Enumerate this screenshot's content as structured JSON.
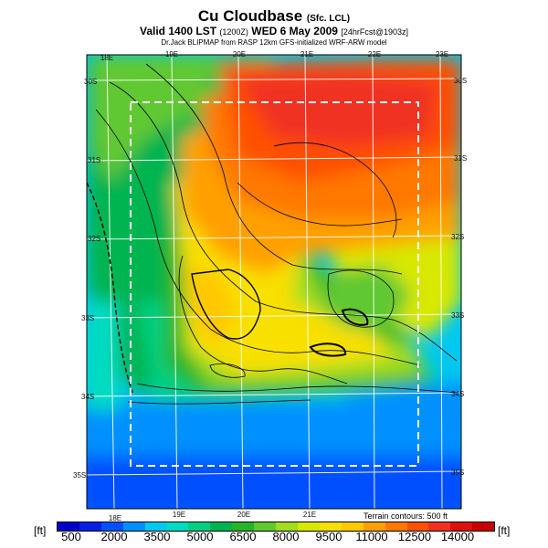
{
  "header": {
    "title": "Cu Cloudbase",
    "title_suffix": "(Sfc. LCL)",
    "valid_main": "Valid 1400 LST",
    "valid_utc": "(1200Z)",
    "valid_date": "WED 6 May 2009",
    "valid_fcst": "[24hrFcst@1903z]",
    "source": "Dr.Jack BLIPMAP from RASP 12km GFS-initialized WRF-ARW model"
  },
  "map": {
    "lon_labels_top": [
      "18E",
      "19E",
      "20E",
      "21E",
      "22E",
      "23E"
    ],
    "lon_labels_bottom": [
      "18E",
      "19E",
      "20E",
      "21E"
    ],
    "lat_labels_left": [
      "30S",
      "31S",
      "32S",
      "33S",
      "34S",
      "35S"
    ],
    "lat_labels_right": [
      "30S",
      "31S",
      "32S",
      "33S",
      "34S",
      "35S"
    ],
    "terrain_note": "Terrain contours: 500 ft"
  },
  "colorbar": {
    "unit_left": "[ft]",
    "unit_right": "[ft]",
    "tick_labels": [
      "500",
      "2000",
      "3500",
      "5000",
      "6500",
      "8000",
      "9500",
      "11000",
      "12500",
      "14000"
    ],
    "colors": [
      "#0000c8",
      "#0020e6",
      "#0050ff",
      "#0090ff",
      "#00c8f0",
      "#00dcc0",
      "#00d080",
      "#00b450",
      "#28b428",
      "#60c830",
      "#a0dc20",
      "#d8e800",
      "#f8e000",
      "#ffc800",
      "#ffa000",
      "#ff7800",
      "#ff5000",
      "#f03020",
      "#dc1010",
      "#c80000"
    ]
  }
}
